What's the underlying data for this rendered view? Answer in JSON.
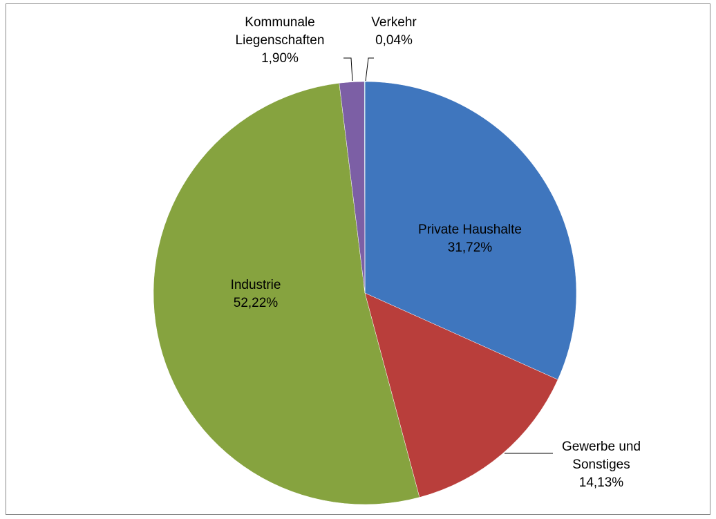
{
  "chart_data": {
    "type": "pie",
    "categories": [
      "Private Haushalte",
      "Gewerbe und Sonstiges",
      "Industrie",
      "Kommunale Liegenschaften",
      "Verkehr"
    ],
    "values": [
      31.72,
      14.13,
      52.22,
      1.9,
      0.04
    ],
    "value_labels": [
      "31,72%",
      "14,13%",
      "52,22%",
      "1,90%",
      "0,04%"
    ],
    "colors": [
      "#3f76be",
      "#b93e3b",
      "#86a33f",
      "#7c5fa5",
      "#4bacc6"
    ]
  }
}
